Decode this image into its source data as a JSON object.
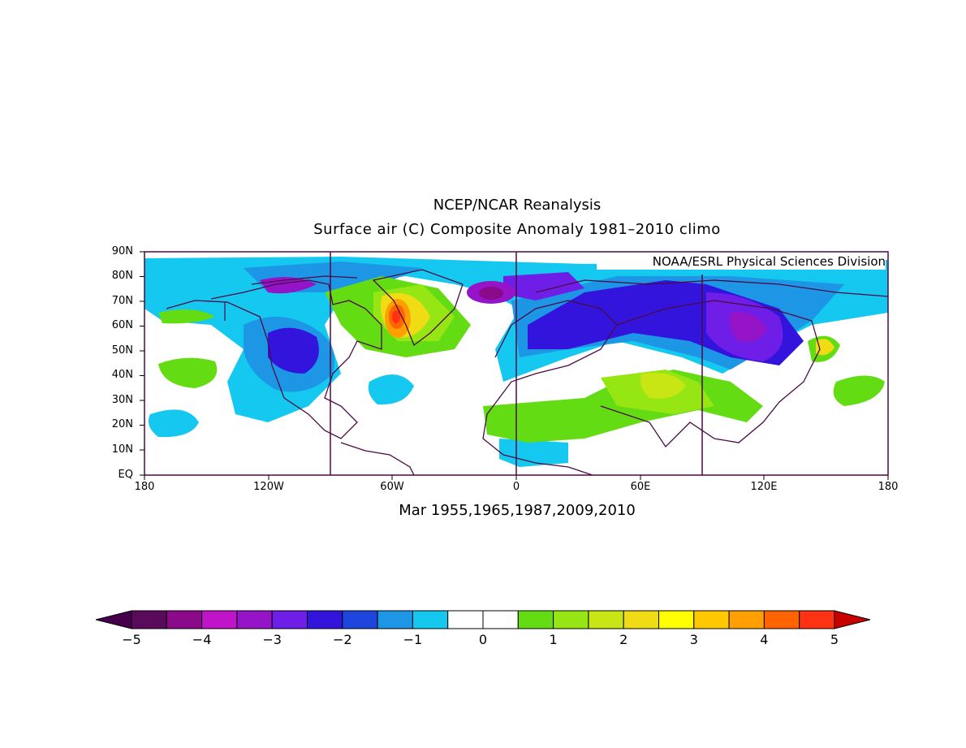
{
  "title_line1": "NCEP/NCAR Reanalysis",
  "title_line2": "Surface air (C) Composite Anomaly 1981–2010 climo",
  "subtitle": "Mar 1955,1965,1987,2009,2010",
  "credit": "NOAA/ESRL Physical Sciences Division",
  "y_ticks": [
    "90N",
    "80N",
    "70N",
    "60N",
    "50N",
    "40N",
    "30N",
    "20N",
    "10N",
    "EQ"
  ],
  "x_ticks": [
    "180",
    "120W",
    "60W",
    "0",
    "60E",
    "120E",
    "180"
  ],
  "colorbar": {
    "labels": [
      "−5",
      "−4",
      "−3",
      "−2",
      "−1",
      "0",
      "1",
      "2",
      "3",
      "4",
      "5"
    ],
    "colors": [
      "#5a0a5a",
      "#8a0a8a",
      "#c014c8",
      "#9614c8",
      "#6e1ee6",
      "#3214dc",
      "#1e46dc",
      "#1e96e6",
      "#14c8f0",
      "#ffffff",
      "#ffffff",
      "#64dc14",
      "#96e614",
      "#c8e614",
      "#f0dc14",
      "#ffff00",
      "#ffc800",
      "#ffa000",
      "#ff6400",
      "#ff3214"
    ],
    "low_arrow": "#46004b",
    "high_arrow": "#c80000"
  }
}
